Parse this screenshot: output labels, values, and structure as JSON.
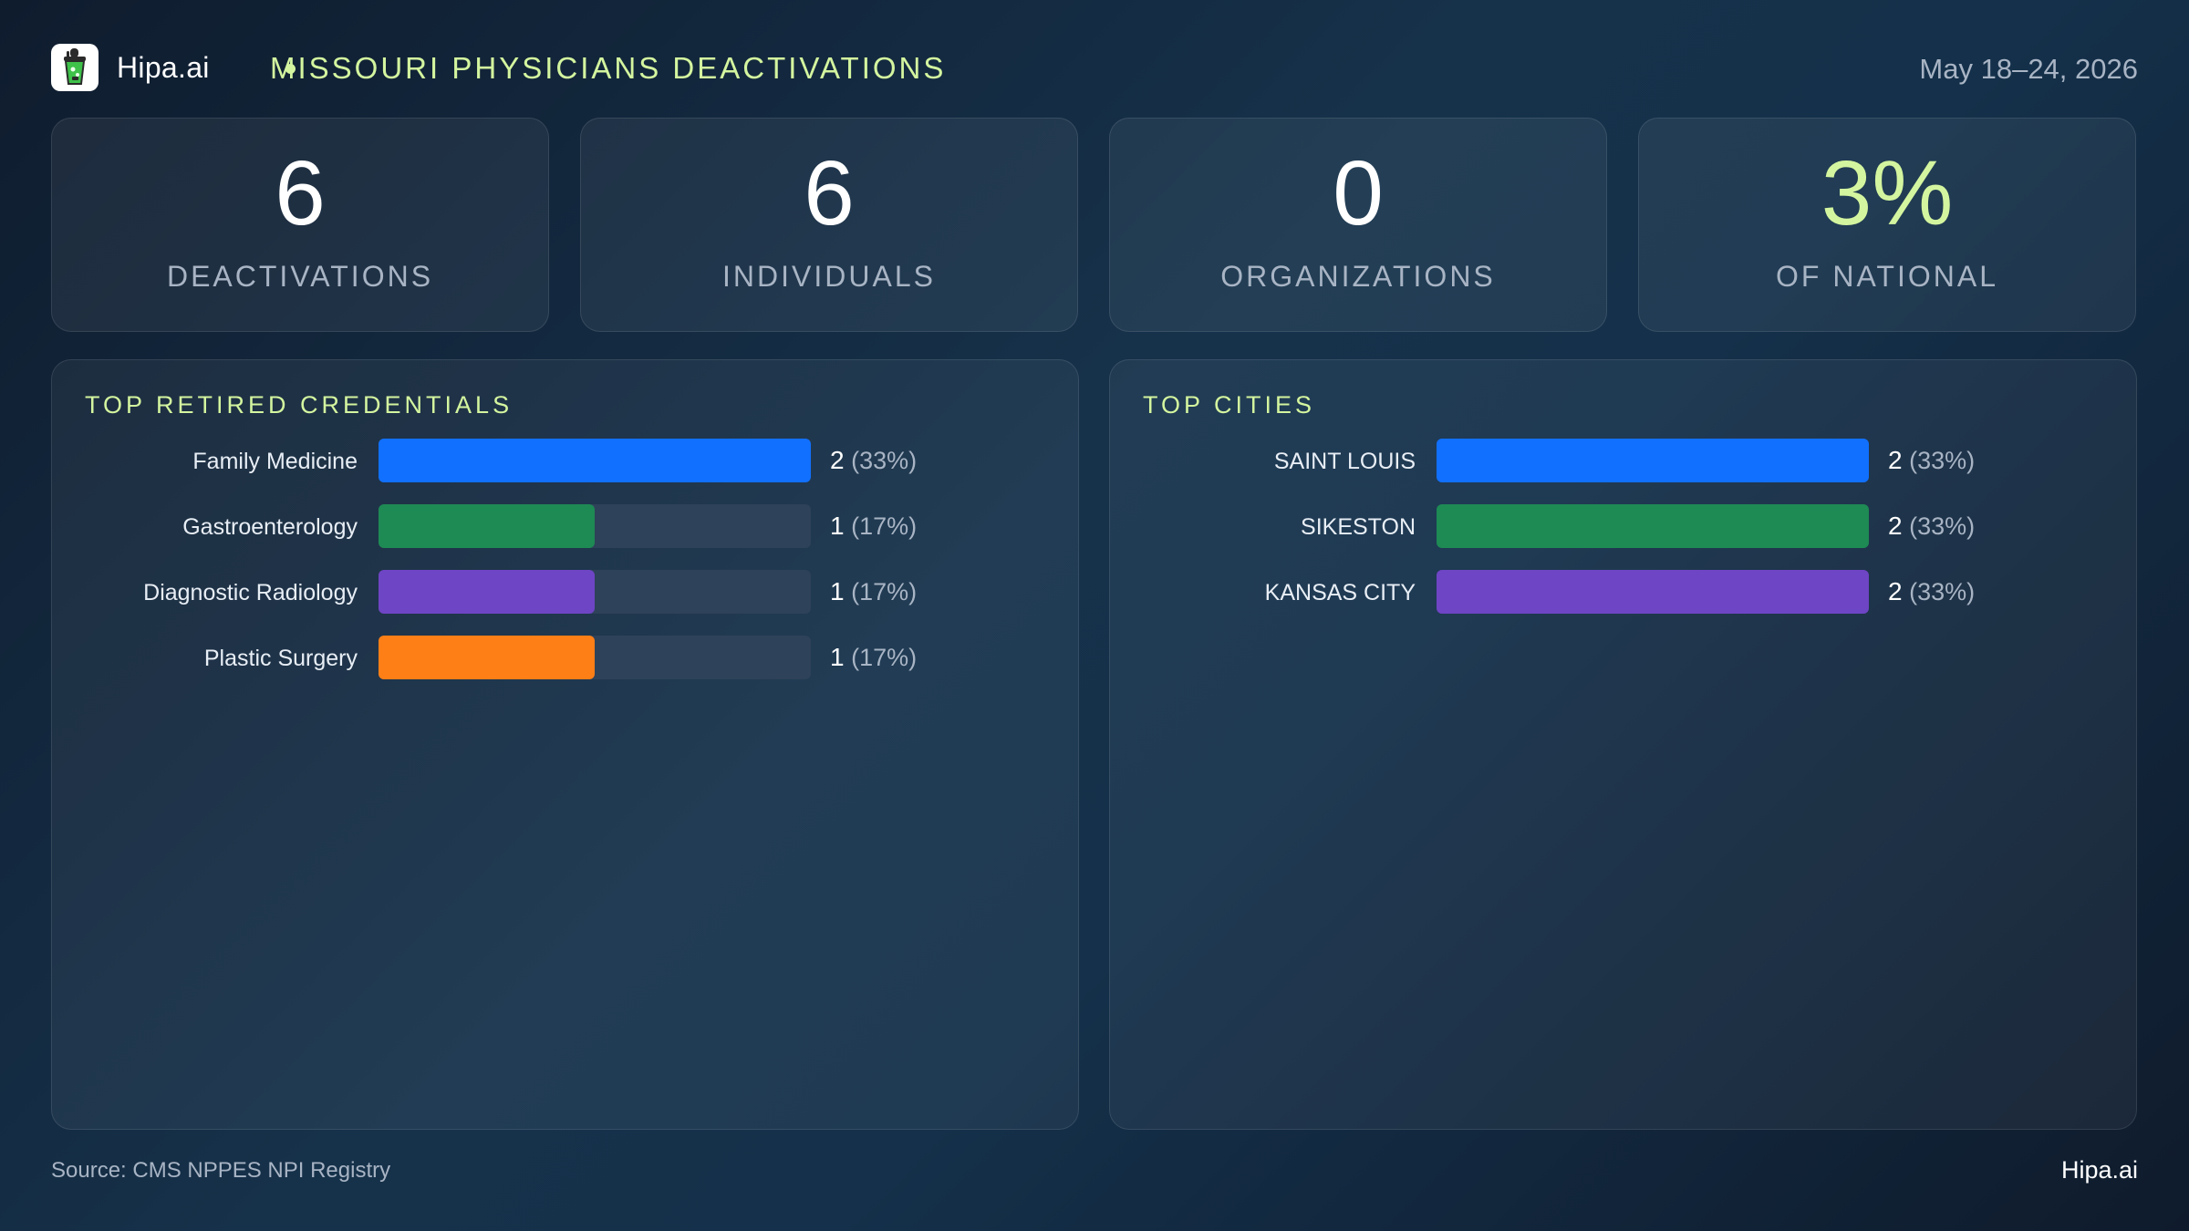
{
  "header": {
    "brand": "Hipa.ai",
    "title": "MISSOURI PHYSICIANS DEACTIVATIONS",
    "date_range": "May 18–24, 2026"
  },
  "kpis": [
    {
      "value": "6",
      "label": "DEACTIVATIONS"
    },
    {
      "value": "6",
      "label": "INDIVIDUALS"
    },
    {
      "value": "0",
      "label": "ORGANIZATIONS"
    },
    {
      "value": "3%",
      "label": "OF NATIONAL"
    }
  ],
  "colors": {
    "accent": "#d4f59f",
    "blue": "#1170ff",
    "green": "#1e8a54",
    "purple": "#6e45c4",
    "orange": "#ff7f17",
    "track": "#2e4259"
  },
  "chart_data": [
    {
      "type": "bar",
      "orientation": "horizontal",
      "title": "TOP RETIRED CREDENTIALS",
      "categories": [
        "Family Medicine",
        "Gastroenterology",
        "Diagnostic Radiology",
        "Plastic Surgery"
      ],
      "values": [
        2,
        1,
        1,
        1
      ],
      "value_labels": [
        "2",
        "1",
        "1",
        "1"
      ],
      "percent_labels": [
        "(33%)",
        "(17%)",
        "(17%)",
        "(17%)"
      ],
      "colors": [
        "#1170ff",
        "#1e8a54",
        "#6e45c4",
        "#ff7f17"
      ],
      "xlim": [
        0,
        2
      ]
    },
    {
      "type": "bar",
      "orientation": "horizontal",
      "title": "TOP CITIES",
      "categories": [
        "SAINT LOUIS",
        "SIKESTON",
        "KANSAS CITY"
      ],
      "values": [
        2,
        2,
        2
      ],
      "value_labels": [
        "2",
        "2",
        "2"
      ],
      "percent_labels": [
        "(33%)",
        "(33%)",
        "(33%)"
      ],
      "colors": [
        "#1170ff",
        "#1e8a54",
        "#6e45c4"
      ],
      "xlim": [
        0,
        2
      ]
    }
  ],
  "footer": {
    "source": "Source: CMS NPPES NPI Registry",
    "brand": "Hipa.ai"
  }
}
